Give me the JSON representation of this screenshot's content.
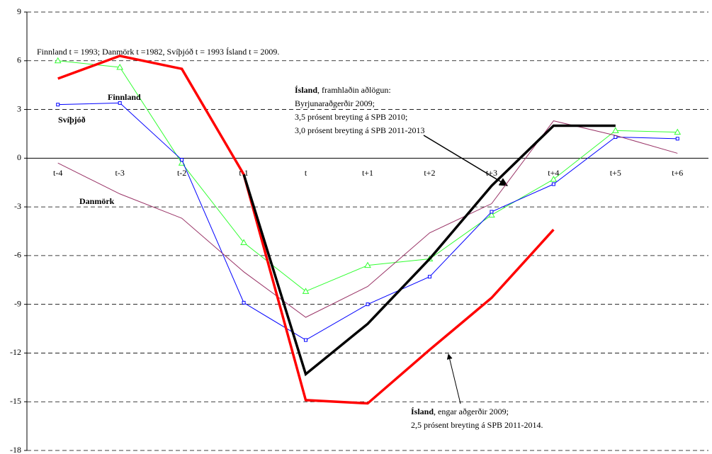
{
  "chart_data": {
    "type": "line",
    "categories": [
      "t-4",
      "t-3",
      "t-2",
      "t-1",
      "t",
      "t+1",
      "t+2",
      "t+3",
      "t+4",
      "t+5",
      "t+6"
    ],
    "series": [
      {
        "name": "Finnland",
        "color": "#33ff33",
        "marker": "triangle",
        "values": [
          6.0,
          5.6,
          -0.3,
          -5.2,
          -8.2,
          -6.6,
          -6.2,
          -3.5,
          -1.3,
          1.7,
          1.6
        ]
      },
      {
        "name": "Svíþjóð",
        "color": "#0000ff",
        "marker": "square",
        "values": [
          3.3,
          3.4,
          -0.1,
          -8.9,
          -11.2,
          -9.0,
          -7.3,
          -3.3,
          -1.6,
          1.3,
          1.2
        ]
      },
      {
        "name": "Danmörk",
        "color": "#993366",
        "values": [
          -0.3,
          -2.2,
          -3.7,
          -7.0,
          -9.8,
          -7.9,
          -4.6,
          -2.8,
          2.3,
          1.4,
          0.3
        ]
      },
      {
        "color": "#ff0000",
        "values": [
          4.9,
          6.3,
          5.5,
          -1.0,
          -14.9,
          -15.1,
          -11.8,
          -8.6,
          -4.4,
          null,
          null
        ]
      },
      {
        "color": "#000000",
        "values": [
          null,
          null,
          null,
          -1.0,
          -13.3,
          -10.2,
          -6.2,
          -1.7,
          2.0,
          2.0,
          null
        ]
      }
    ],
    "ylim": [
      -18,
      9
    ],
    "yticks": [
      -18,
      -15,
      -12,
      -9,
      -6,
      -3,
      0,
      3,
      6,
      9
    ],
    "grid": true,
    "annotations": [
      {
        "text": "Finnland t = 1993; Danmörk t =1982, Svíþjóð t = 1993 Ísland t = 2009."
      },
      {
        "bold": "Ísland",
        "lines": [
          ", framhlaðin aðlögun:",
          "Byrjunaraðgerðir 2009;",
          "3,5 prósent breyting á  SPB  2010;",
          "3,0 prósent breyting á  SPB 2011-2013"
        ]
      },
      {
        "bold": "Ísland",
        "lines": [
          ", engar aðgerðir 2009;",
          "2,5 prósent breyting á  SPB 2011-2014."
        ]
      }
    ]
  }
}
